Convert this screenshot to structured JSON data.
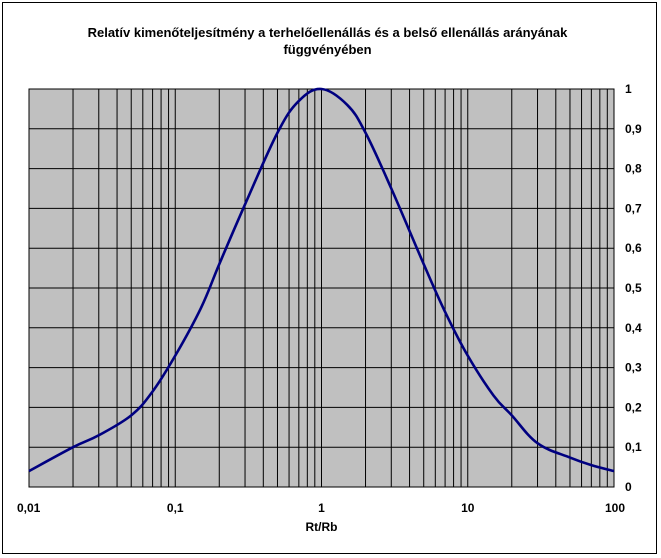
{
  "chart_data": {
    "type": "line",
    "title": "Relatív kimenőteljesítmény a terhelőellenállás és a belső ellenállás arányának függvényében",
    "title_lines": [
      "Relatív kimenőteljesítmény a terhelőellenállás és a belső ellenállás arányának",
      "függvényében"
    ],
    "xlabel": "Rt/Rb",
    "ylabel": "",
    "x_scale": "log",
    "xlim": [
      0.01,
      100
    ],
    "ylim": [
      0,
      1
    ],
    "x_ticks": [
      0.01,
      0.1,
      1,
      10,
      100
    ],
    "x_tick_labels": [
      "0,01",
      "0,1",
      "1",
      "10",
      "100"
    ],
    "y_ticks": [
      0,
      0.1,
      0.2,
      0.3,
      0.4,
      0.5,
      0.6,
      0.7,
      0.8,
      0.9,
      1
    ],
    "y_tick_labels": [
      "0",
      "0,1",
      "0,2",
      "0,3",
      "0,4",
      "0,5",
      "0,6",
      "0,7",
      "0,8",
      "0,9",
      "1"
    ],
    "y_axis_side": "right",
    "grid": true,
    "plot_background": "#c0c0c0",
    "grid_color": "#000000",
    "series": [
      {
        "color": "#000080",
        "x": [
          0.01,
          0.02,
          0.03,
          0.05,
          0.07,
          0.1,
          0.15,
          0.2,
          0.3,
          0.5,
          0.7,
          1,
          1.5,
          2,
          3,
          5,
          7,
          10,
          15,
          20,
          30,
          50,
          70,
          100
        ],
        "y": [
          0.04,
          0.1,
          0.13,
          0.18,
          0.24,
          0.33,
          0.45,
          0.56,
          0.71,
          0.89,
          0.97,
          1.0,
          0.96,
          0.89,
          0.75,
          0.56,
          0.44,
          0.33,
          0.23,
          0.18,
          0.11,
          0.074,
          0.055,
          0.04
        ]
      }
    ]
  }
}
